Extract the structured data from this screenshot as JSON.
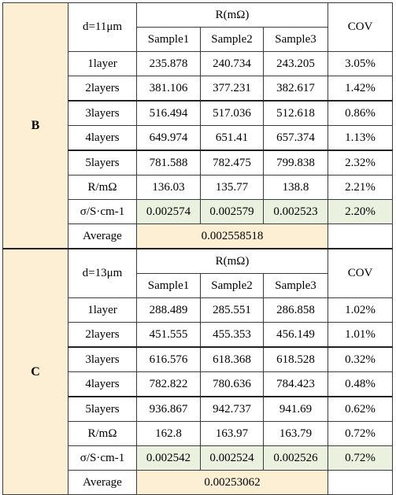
{
  "columns": {
    "r_header": "R(mΩ)",
    "cov_header": "COV",
    "samples": [
      "Sample1",
      "Sample2",
      "Sample3"
    ],
    "average_label": "Average"
  },
  "groups": [
    {
      "label": "B",
      "thickness": "d=11μm",
      "rows": [
        {
          "label": "1layer",
          "s1": "235.878",
          "s2": "240.734",
          "s3": "243.205",
          "cov": "3.05%"
        },
        {
          "label": "2layers",
          "s1": "381.106",
          "s2": "377.231",
          "s3": "382.617",
          "cov": "1.42%"
        },
        {
          "label": "3layers",
          "s1": "516.494",
          "s2": "517.036",
          "s3": "512.618",
          "cov": "0.86%"
        },
        {
          "label": "4layers",
          "s1": "649.974",
          "s2": "651.41",
          "s3": "657.374",
          "cov": "1.13%"
        },
        {
          "label": "5layers",
          "s1": "781.588",
          "s2": "782.475",
          "s3": "799.838",
          "cov": "2.32%"
        },
        {
          "label": "R/mΩ",
          "s1": "136.03",
          "s2": "135.77",
          "s3": "138.8",
          "cov": "2.21%"
        },
        {
          "label": "σ/S·cm-1",
          "s1": "0.002574",
          "s2": "0.002579",
          "s3": "0.002523",
          "cov": "2.20%"
        }
      ],
      "average": "0.002558518"
    },
    {
      "label": "C",
      "thickness": "d=13μm",
      "rows": [
        {
          "label": "1layer",
          "s1": "288.489",
          "s2": "285.551",
          "s3": "286.858",
          "cov": "1.02%"
        },
        {
          "label": "2layers",
          "s1": "451.555",
          "s2": "455.353",
          "s3": "456.149",
          "cov": "1.01%"
        },
        {
          "label": "3layers",
          "s1": "616.576",
          "s2": "618.368",
          "s3": "618.528",
          "cov": "0.32%"
        },
        {
          "label": "4layers",
          "s1": "782.822",
          "s2": "780.636",
          "s3": "784.423",
          "cov": "0.48%"
        },
        {
          "label": "5layers",
          "s1": "936.867",
          "s2": "942.737",
          "s3": "941.69",
          "cov": "0.62%"
        },
        {
          "label": "R/mΩ",
          "s1": "162.8",
          "s2": "163.97",
          "s3": "163.79",
          "cov": "0.72%"
        },
        {
          "label": "σ/S·cm-1",
          "s1": "0.002542",
          "s2": "0.002524",
          "s3": "0.002526",
          "cov": "0.72%"
        }
      ],
      "average": "0.00253062"
    }
  ],
  "colors": {
    "group_fill": "#fcefd4",
    "sigma_fill": "#eaf1de",
    "border": "#3c3c3c"
  }
}
